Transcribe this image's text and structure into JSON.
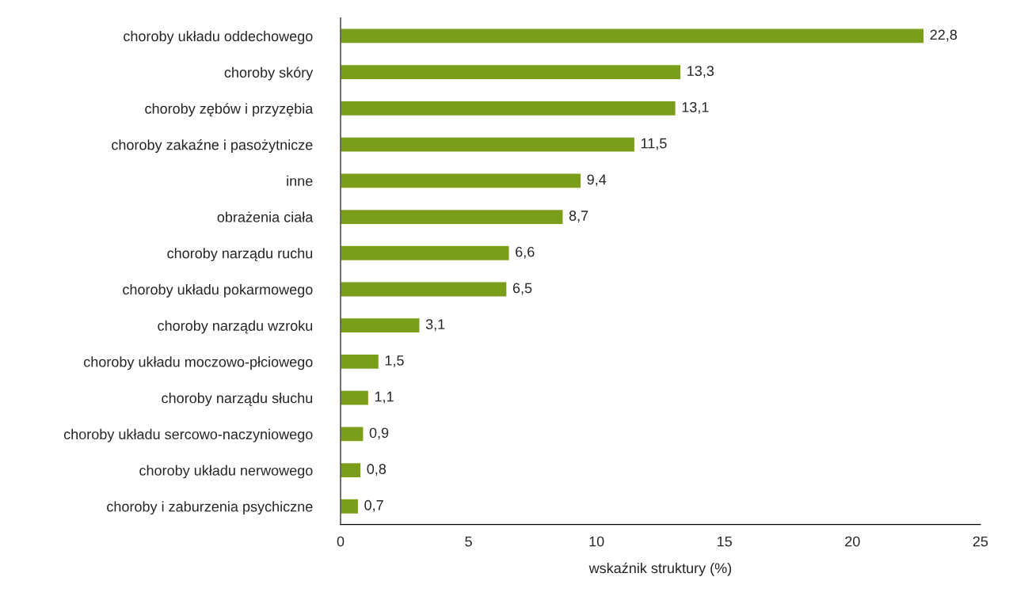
{
  "chart_data": {
    "type": "bar",
    "orientation": "horizontal",
    "xlabel": "wskaźnik struktury (%)",
    "categories": [
      "choroby układu oddechowego",
      "choroby skóry",
      "choroby zębów i przyzębia",
      "choroby zakaźne i pasożytnicze",
      "inne",
      "obrażenia ciała",
      "choroby narządu ruchu",
      "choroby układu pokarmowego",
      "choroby narządu wzroku",
      "choroby układu moczowo-płciowego",
      "choroby narządu słuchu",
      "choroby układu sercowo-naczyniowego",
      "choroby układu nerwowego",
      "choroby i zaburzenia psychiczne"
    ],
    "values": [
      22.8,
      13.3,
      13.1,
      11.5,
      9.4,
      8.7,
      6.6,
      6.5,
      3.1,
      1.5,
      1.1,
      0.9,
      0.8,
      0.7
    ],
    "value_labels": [
      "22,8",
      "13,3",
      "13,1",
      "11,5",
      "9,4",
      "8,7",
      "6,6",
      "6,5",
      "3,1",
      "1,5",
      "1,1",
      "0,9",
      "0,8",
      "0,7"
    ],
    "color": "#7a9e1a",
    "xlim": [
      0,
      25
    ],
    "xticks": [
      0,
      5,
      10,
      15,
      20,
      25
    ],
    "grid": false,
    "legend": false
  }
}
